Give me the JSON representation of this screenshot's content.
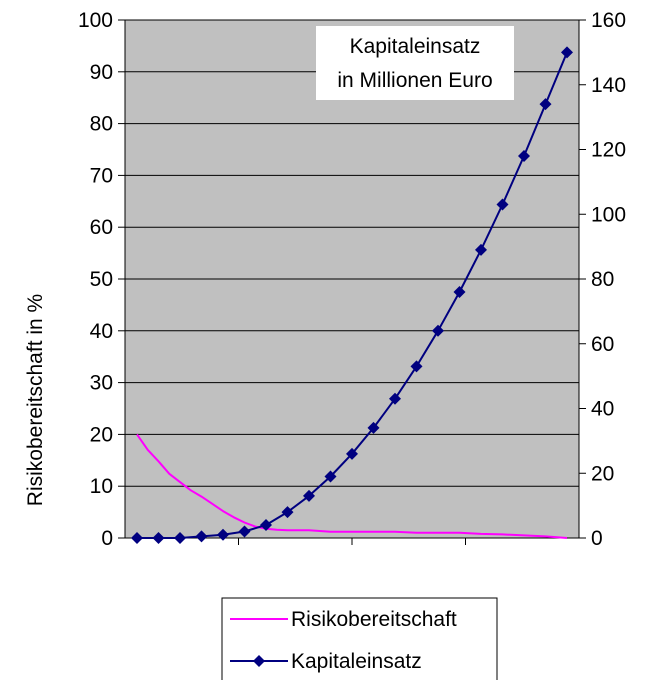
{
  "chart_data": {
    "type": "line",
    "annotation_lines": [
      "Kapitaleinsatz",
      "in Millionen Euro"
    ],
    "ylabel": "Risikobereitschaft in %",
    "y_ticks": [
      "0",
      "10",
      "20",
      "30",
      "40",
      "50",
      "60",
      "70",
      "80",
      "90",
      "100"
    ],
    "y2_ticks": [
      "0",
      "20",
      "40",
      "60",
      "80",
      "100",
      "120",
      "140",
      "160"
    ],
    "ylim": [
      0,
      100
    ],
    "y2lim": [
      0,
      160
    ],
    "xlim": [
      0,
      20
    ],
    "grid": true,
    "legend_position": "bottom",
    "plot_background": "#c0c0c0",
    "series": [
      {
        "name": "Risikobereitschaft",
        "color": "#ff00ff",
        "axis": "left",
        "marker": "none",
        "x": [
          0,
          0.5,
          1,
          1.5,
          2,
          2.5,
          3,
          3.5,
          4,
          4.5,
          5,
          5.5,
          6,
          6.5,
          7,
          7.5,
          8,
          9,
          10,
          11,
          12,
          13,
          14,
          15,
          16,
          17,
          18,
          19,
          20
        ],
        "values": [
          20,
          17,
          14.8,
          12.4,
          10.8,
          9.2,
          8,
          6.6,
          5.2,
          4,
          3,
          2.2,
          1.8,
          1.6,
          1.5,
          1.5,
          1.5,
          1.2,
          1.2,
          1.2,
          1.2,
          1.0,
          1.0,
          1.0,
          0.8,
          0.7,
          0.5,
          0.3,
          0.0
        ]
      },
      {
        "name": "Kapitaleinsatz",
        "color": "#000080",
        "axis": "right",
        "marker": "diamond",
        "x": [
          0,
          1,
          2,
          3,
          4,
          5,
          6,
          7,
          8,
          9,
          10,
          11,
          12,
          13,
          14,
          15,
          16,
          17,
          18,
          19,
          20
        ],
        "values": [
          0,
          0,
          0,
          0.5,
          1,
          2,
          4,
          8,
          13,
          19,
          26,
          34,
          43,
          53,
          64,
          76,
          89,
          103,
          118,
          134,
          150
        ]
      }
    ]
  }
}
